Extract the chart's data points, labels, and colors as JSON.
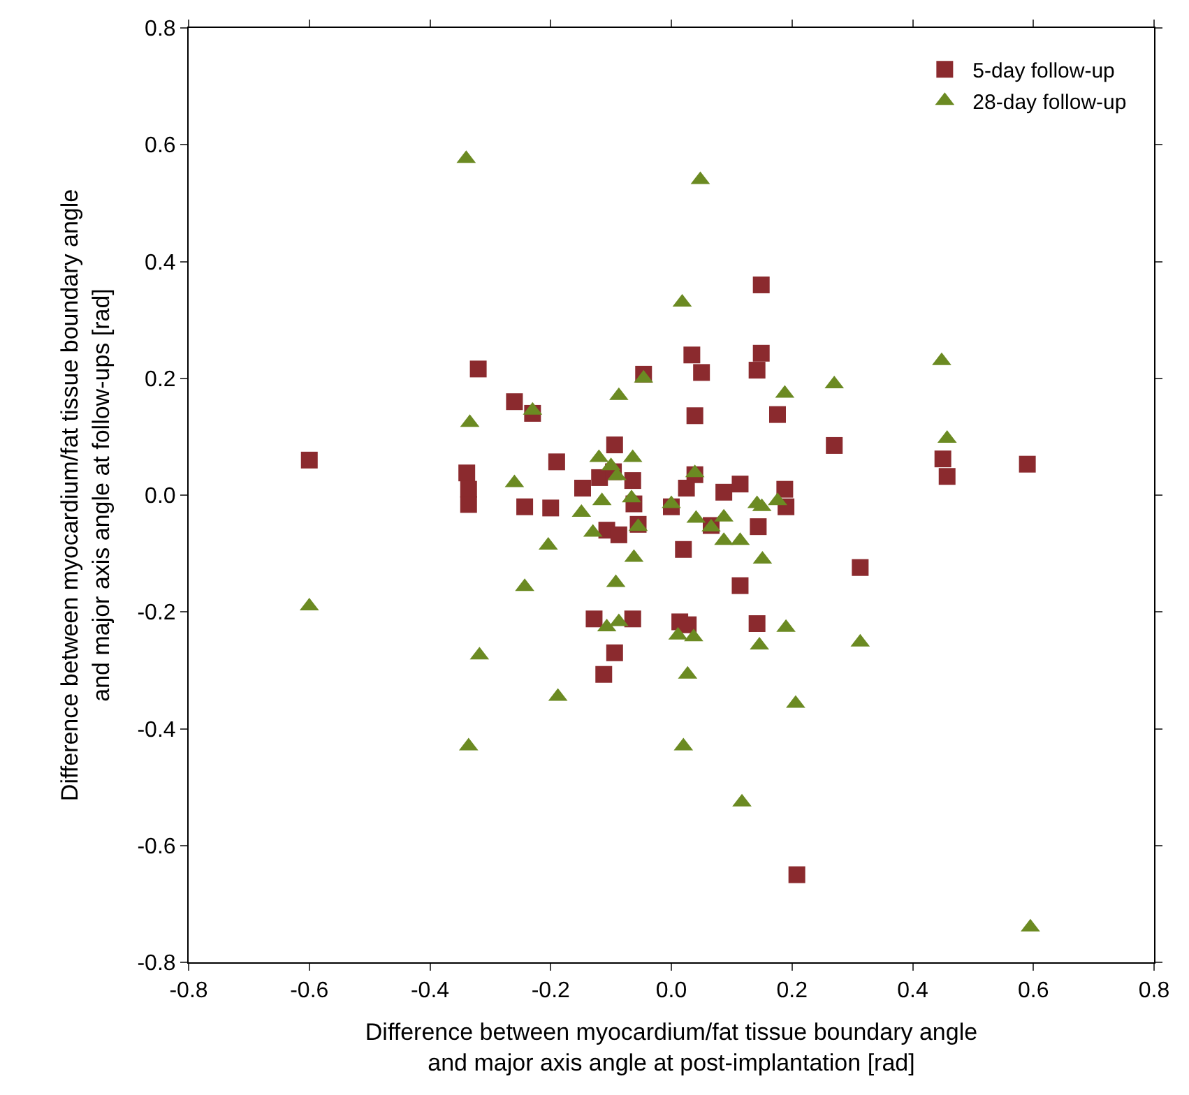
{
  "chart_data": {
    "type": "scatter",
    "xlabel": "Difference between myocardium/fat tissue boundary angle\nand major axis angle at post-implantation [rad]",
    "ylabel": "Difference between myocardium/fat tissue boundary angle\nand major axis angle at follow-ups [rad]",
    "xlim": [
      -0.8,
      0.8
    ],
    "xticks": [
      {
        "value": -0.8,
        "label": "-0.8"
      },
      {
        "value": -0.6,
        "label": "-0.6"
      },
      {
        "value": -0.4,
        "label": "-0.4"
      },
      {
        "value": -0.2,
        "label": "-0.2"
      },
      {
        "value": 0,
        "label": "0.0"
      },
      {
        "value": 0.2,
        "label": "0.2"
      },
      {
        "value": 0.4,
        "label": "0.4"
      },
      {
        "value": 0.6,
        "label": "0.6"
      },
      {
        "value": 0.8,
        "label": "0.8"
      }
    ],
    "ylim": [
      -0.8,
      0.8
    ],
    "yticks": [
      {
        "value": -0.8,
        "label": "-0.8"
      },
      {
        "value": -0.6,
        "label": "-0.6"
      },
      {
        "value": -0.4,
        "label": "-0.4"
      },
      {
        "value": -0.2,
        "label": "-0.2"
      },
      {
        "value": 0,
        "label": "0.0"
      },
      {
        "value": 0.2,
        "label": "0.2"
      },
      {
        "value": 0.4,
        "label": "0.4"
      },
      {
        "value": 0.6,
        "label": "0.6"
      },
      {
        "value": 0.8,
        "label": "0.8"
      }
    ],
    "legend": "top right",
    "series": [
      {
        "name": "5-day follow-up",
        "color": "#8b2a2e",
        "marker": "square",
        "x": [
          -0.6,
          0.149,
          0.034,
          0.05,
          0.149,
          0.142,
          -0.32,
          -0.046,
          -0.26,
          -0.23,
          0.039,
          -0.094,
          -0.19,
          -0.339,
          0.039,
          -0.336,
          -0.336,
          -0.243,
          -0.2,
          -0.147,
          -0.119,
          -0.096,
          -0.064,
          -0.062,
          -0.107,
          -0.087,
          -0.055,
          0.025,
          0.0,
          0.087,
          0.114,
          0.066,
          0.02,
          0.114,
          -0.128,
          -0.064,
          0.014,
          0.028,
          0.142,
          -0.094,
          -0.112,
          0.176,
          0.27,
          0.45,
          0.457,
          0.59,
          0.188,
          0.19,
          0.144,
          0.313,
          0.208
        ],
        "values": [
          0.06,
          0.36,
          0.24,
          0.21,
          0.243,
          0.214,
          0.216,
          0.207,
          0.16,
          0.14,
          0.136,
          0.086,
          0.057,
          0.038,
          0.035,
          0.01,
          -0.016,
          -0.02,
          -0.022,
          0.012,
          0.03,
          0.04,
          0.025,
          -0.015,
          -0.06,
          -0.068,
          -0.05,
          0.012,
          -0.02,
          0.005,
          0.019,
          -0.052,
          -0.093,
          -0.155,
          -0.212,
          -0.212,
          -0.217,
          -0.222,
          -0.22,
          -0.27,
          -0.307,
          0.138,
          0.085,
          0.062,
          0.032,
          0.053,
          0.01,
          -0.02,
          -0.054,
          -0.124,
          -0.65
        ]
      },
      {
        "name": "28-day follow-up",
        "color": "#6b8a22",
        "marker": "triangle",
        "x": [
          -0.6,
          -0.34,
          0.048,
          0.018,
          -0.046,
          -0.087,
          -0.23,
          -0.334,
          -0.12,
          -0.064,
          -0.26,
          -0.1,
          -0.09,
          0.039,
          -0.115,
          -0.149,
          -0.066,
          -0.13,
          -0.055,
          0.0,
          0.041,
          0.066,
          0.087,
          0.087,
          0.114,
          -0.204,
          -0.062,
          -0.092,
          -0.243,
          -0.107,
          -0.087,
          0.011,
          0.037,
          0.146,
          -0.318,
          0.027,
          -0.188,
          -0.336,
          0.02,
          0.142,
          0.15,
          0.151,
          0.448,
          0.27,
          0.188,
          0.457,
          0.176,
          0.19,
          0.313,
          0.206,
          0.117,
          0.595
        ],
        "values": [
          -0.19,
          0.576,
          0.54,
          0.33,
          0.2,
          0.17,
          0.145,
          0.124,
          0.064,
          0.064,
          0.021,
          0.05,
          0.033,
          0.038,
          -0.01,
          -0.03,
          -0.005,
          -0.064,
          -0.054,
          -0.015,
          -0.04,
          -0.055,
          -0.038,
          -0.078,
          -0.078,
          -0.086,
          -0.107,
          -0.15,
          -0.157,
          -0.226,
          -0.217,
          -0.24,
          -0.243,
          -0.257,
          -0.274,
          -0.307,
          -0.345,
          -0.43,
          -0.43,
          -0.015,
          -0.02,
          -0.11,
          0.23,
          0.19,
          0.174,
          0.097,
          -0.01,
          -0.227,
          -0.252,
          -0.357,
          -0.526,
          -0.74
        ]
      }
    ]
  }
}
